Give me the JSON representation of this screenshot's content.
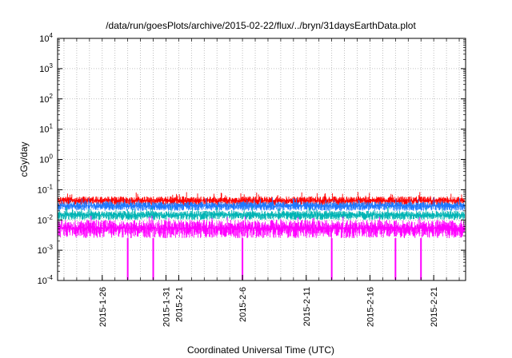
{
  "chart_data": {
    "type": "line",
    "title": "/data/run/goesPlots/archive/2015-02-22/flux/../bryn/31daysEarthData.plot",
    "xlabel": "Coordinated Universal Time (UTC)",
    "ylabel": "cGy/day",
    "y_scale": "log",
    "ylim": [
      0.0001,
      10000
    ],
    "y_ticks": [
      {
        "base": "10",
        "exp": "-4",
        "value": 0.0001
      },
      {
        "base": "10",
        "exp": "-3",
        "value": 0.001
      },
      {
        "base": "10",
        "exp": "-2",
        "value": 0.01
      },
      {
        "base": "10",
        "exp": "-1",
        "value": 0.1
      },
      {
        "base": "10",
        "exp": "0",
        "value": 1
      },
      {
        "base": "10",
        "exp": "1",
        "value": 10
      },
      {
        "base": "10",
        "exp": "2",
        "value": 100
      },
      {
        "base": "10",
        "exp": "3",
        "value": 1000
      },
      {
        "base": "10",
        "exp": "4",
        "value": 10000
      }
    ],
    "x_type": "date",
    "xlim": [
      "2015-01-22T12:00",
      "2015-02-23T12:00"
    ],
    "x_ticks": [
      {
        "label": "2015-1-26",
        "date": "2015-01-26"
      },
      {
        "label": "2015-1-31",
        "date": "2015-01-31"
      },
      {
        "label": "2015-2-1",
        "date": "2015-02-01"
      },
      {
        "label": "2015-2-6",
        "date": "2015-02-06"
      },
      {
        "label": "2015-2-11",
        "date": "2015-02-11"
      },
      {
        "label": "2015-2-16",
        "date": "2015-02-16"
      },
      {
        "label": "2015-2-21",
        "date": "2015-02-21"
      }
    ],
    "grid": true,
    "series": [
      {
        "color": "#ff0000",
        "typical_value": 0.04,
        "noise_range": [
          0.03,
          0.06
        ]
      },
      {
        "color": "#1e78ff",
        "typical_value": 0.03,
        "noise_range": [
          0.02,
          0.04
        ]
      },
      {
        "color": "#00b4b4",
        "typical_value": 0.015,
        "noise_range": [
          0.01,
          0.02
        ]
      },
      {
        "color": "#ff00ff",
        "typical_value": 0.005,
        "noise_range": [
          0.0025,
          0.01
        ],
        "dropouts": [
          "2015-01-28",
          "2015-01-30",
          "2015-02-06",
          "2015-02-13",
          "2015-02-18",
          "2015-02-20"
        ]
      }
    ]
  }
}
